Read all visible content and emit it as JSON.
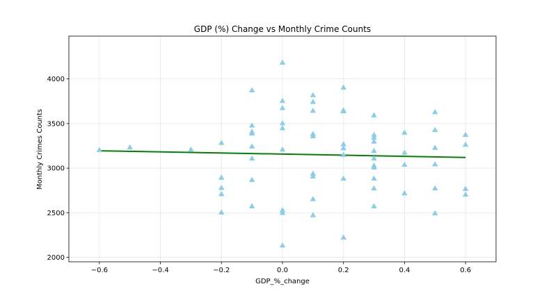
{
  "chart_data": {
    "type": "scatter",
    "title": "GDP (%) Change vs Monthly Crime Counts",
    "xlabel": "GDP_%_change",
    "ylabel": "Monthly Crimes Counts",
    "xlim": [
      -0.7,
      0.7
    ],
    "ylim": [
      1950,
      4480
    ],
    "xticks": [
      -0.6,
      -0.4,
      -0.2,
      0.0,
      0.2,
      0.4,
      0.6
    ],
    "xtick_labels": [
      "−0.6",
      "−0.4",
      "−0.2",
      "0.0",
      "0.2",
      "0.4",
      "0.6"
    ],
    "yticks": [
      2000,
      2500,
      3000,
      3500,
      4000
    ],
    "ytick_labels": [
      "2000",
      "2500",
      "3000",
      "3500",
      "4000"
    ],
    "grid": true,
    "marker": "triangle",
    "colors": {
      "points": "#87ceeb",
      "trend": "#008000",
      "grid": "#e6e6e6",
      "axes": "#000000"
    },
    "trendline": {
      "x": [
        -0.6,
        0.6
      ],
      "y": [
        3195,
        3120
      ]
    },
    "series": [
      {
        "points": [
          [
            -0.6,
            3205
          ],
          [
            -0.5,
            3235
          ],
          [
            -0.3,
            3210
          ],
          [
            -0.2,
            3285
          ],
          [
            -0.2,
            2895
          ],
          [
            -0.2,
            2780
          ],
          [
            -0.2,
            2710
          ],
          [
            -0.2,
            2505
          ],
          [
            -0.1,
            3875
          ],
          [
            -0.1,
            3480
          ],
          [
            -0.1,
            3410
          ],
          [
            -0.1,
            3390
          ],
          [
            -0.1,
            3245
          ],
          [
            -0.1,
            3110
          ],
          [
            -0.1,
            2870
          ],
          [
            -0.1,
            2575
          ],
          [
            0.0,
            4185
          ],
          [
            0.0,
            3755
          ],
          [
            0.0,
            3675
          ],
          [
            0.0,
            3505
          ],
          [
            0.0,
            3450
          ],
          [
            0.0,
            3210
          ],
          [
            0.0,
            2530
          ],
          [
            0.0,
            2500
          ],
          [
            0.0,
            2135
          ],
          [
            0.1,
            3820
          ],
          [
            0.1,
            3745
          ],
          [
            0.1,
            3645
          ],
          [
            0.1,
            3385
          ],
          [
            0.1,
            3360
          ],
          [
            0.1,
            2940
          ],
          [
            0.1,
            2910
          ],
          [
            0.1,
            2655
          ],
          [
            0.1,
            2475
          ],
          [
            0.2,
            3905
          ],
          [
            0.2,
            3650
          ],
          [
            0.2,
            3640
          ],
          [
            0.2,
            3270
          ],
          [
            0.2,
            3225
          ],
          [
            0.2,
            3150
          ],
          [
            0.2,
            2885
          ],
          [
            0.2,
            2225
          ],
          [
            0.3,
            3595
          ],
          [
            0.3,
            3375
          ],
          [
            0.3,
            3345
          ],
          [
            0.3,
            3300
          ],
          [
            0.3,
            3195
          ],
          [
            0.3,
            3110
          ],
          [
            0.3,
            3030
          ],
          [
            0.3,
            3010
          ],
          [
            0.3,
            2885
          ],
          [
            0.3,
            2775
          ],
          [
            0.3,
            2575
          ],
          [
            0.4,
            3400
          ],
          [
            0.4,
            3175
          ],
          [
            0.4,
            3040
          ],
          [
            0.4,
            2720
          ],
          [
            0.5,
            3630
          ],
          [
            0.5,
            3430
          ],
          [
            0.5,
            3230
          ],
          [
            0.5,
            3045
          ],
          [
            0.5,
            2775
          ],
          [
            0.5,
            2495
          ],
          [
            0.6,
            3375
          ],
          [
            0.6,
            3265
          ],
          [
            0.6,
            2770
          ],
          [
            0.6,
            2705
          ]
        ]
      }
    ]
  }
}
